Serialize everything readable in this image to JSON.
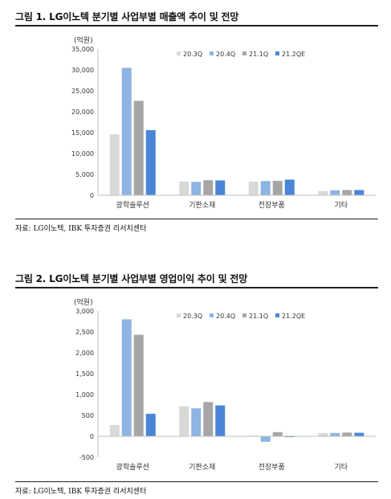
{
  "charts": [
    {
      "figure_title": "그림 1. LG이노텍 분기별 사업부별 매출액 추이 및 전망",
      "source": "자료: LG이노텍, IBK 투자증권 리서치센터"
    },
    {
      "figure_title": "그림 2. LG이노텍 분기별 사업부별 영업이익 추이 및 전망",
      "source": "자료: LG이노텍, IBK 투자증권 리서치센터"
    }
  ],
  "colors": {
    "20.3Q": "#d9d9d9",
    "20.4Q": "#8db4e2",
    "21.1Q": "#a6a6a6",
    "21.2QE": "#4a86d8"
  },
  "chart_data": [
    {
      "type": "bar",
      "title": "",
      "ylabel": "(억원)",
      "xlabel": "",
      "categories": [
        "광학솔루션",
        "기판소재",
        "전장부품",
        "기타"
      ],
      "series": [
        {
          "name": "20.3Q",
          "values": [
            14600,
            3300,
            3250,
            1000
          ]
        },
        {
          "name": "20.4Q",
          "values": [
            30500,
            3200,
            3400,
            1200
          ]
        },
        {
          "name": "21.1Q",
          "values": [
            22600,
            3600,
            3450,
            1250
          ]
        },
        {
          "name": "21.2QE",
          "values": [
            15600,
            3550,
            3750,
            1250
          ]
        }
      ],
      "ylim": [
        0,
        35000
      ],
      "yticks": [
        0,
        5000,
        10000,
        15000,
        20000,
        25000,
        30000,
        35000
      ],
      "ytick_labels": [
        "0",
        "5,000",
        "10,000",
        "15,000",
        "20,000",
        "25,000",
        "30,000",
        "35,000"
      ],
      "legend": "top-right",
      "grid": false
    },
    {
      "type": "bar",
      "title": "",
      "ylabel": "(억원)",
      "xlabel": "",
      "categories": [
        "광학솔루션",
        "기판소재",
        "전장부품",
        "기타"
      ],
      "series": [
        {
          "name": "20.3Q",
          "values": [
            270,
            720,
            15,
            80
          ]
        },
        {
          "name": "20.4Q",
          "values": [
            2800,
            670,
            -130,
            80
          ]
        },
        {
          "name": "21.1Q",
          "values": [
            2430,
            820,
            100,
            90
          ]
        },
        {
          "name": "21.2QE",
          "values": [
            540,
            740,
            -20,
            85
          ]
        }
      ],
      "ylim": [
        -500,
        3000
      ],
      "yticks": [
        -500,
        0,
        500,
        1000,
        1500,
        2000,
        2500,
        3000
      ],
      "ytick_labels": [
        "-500",
        "0",
        "500",
        "1,000",
        "1,500",
        "2,000",
        "2,500",
        "3,000"
      ],
      "legend": "top-right",
      "grid": false
    }
  ]
}
